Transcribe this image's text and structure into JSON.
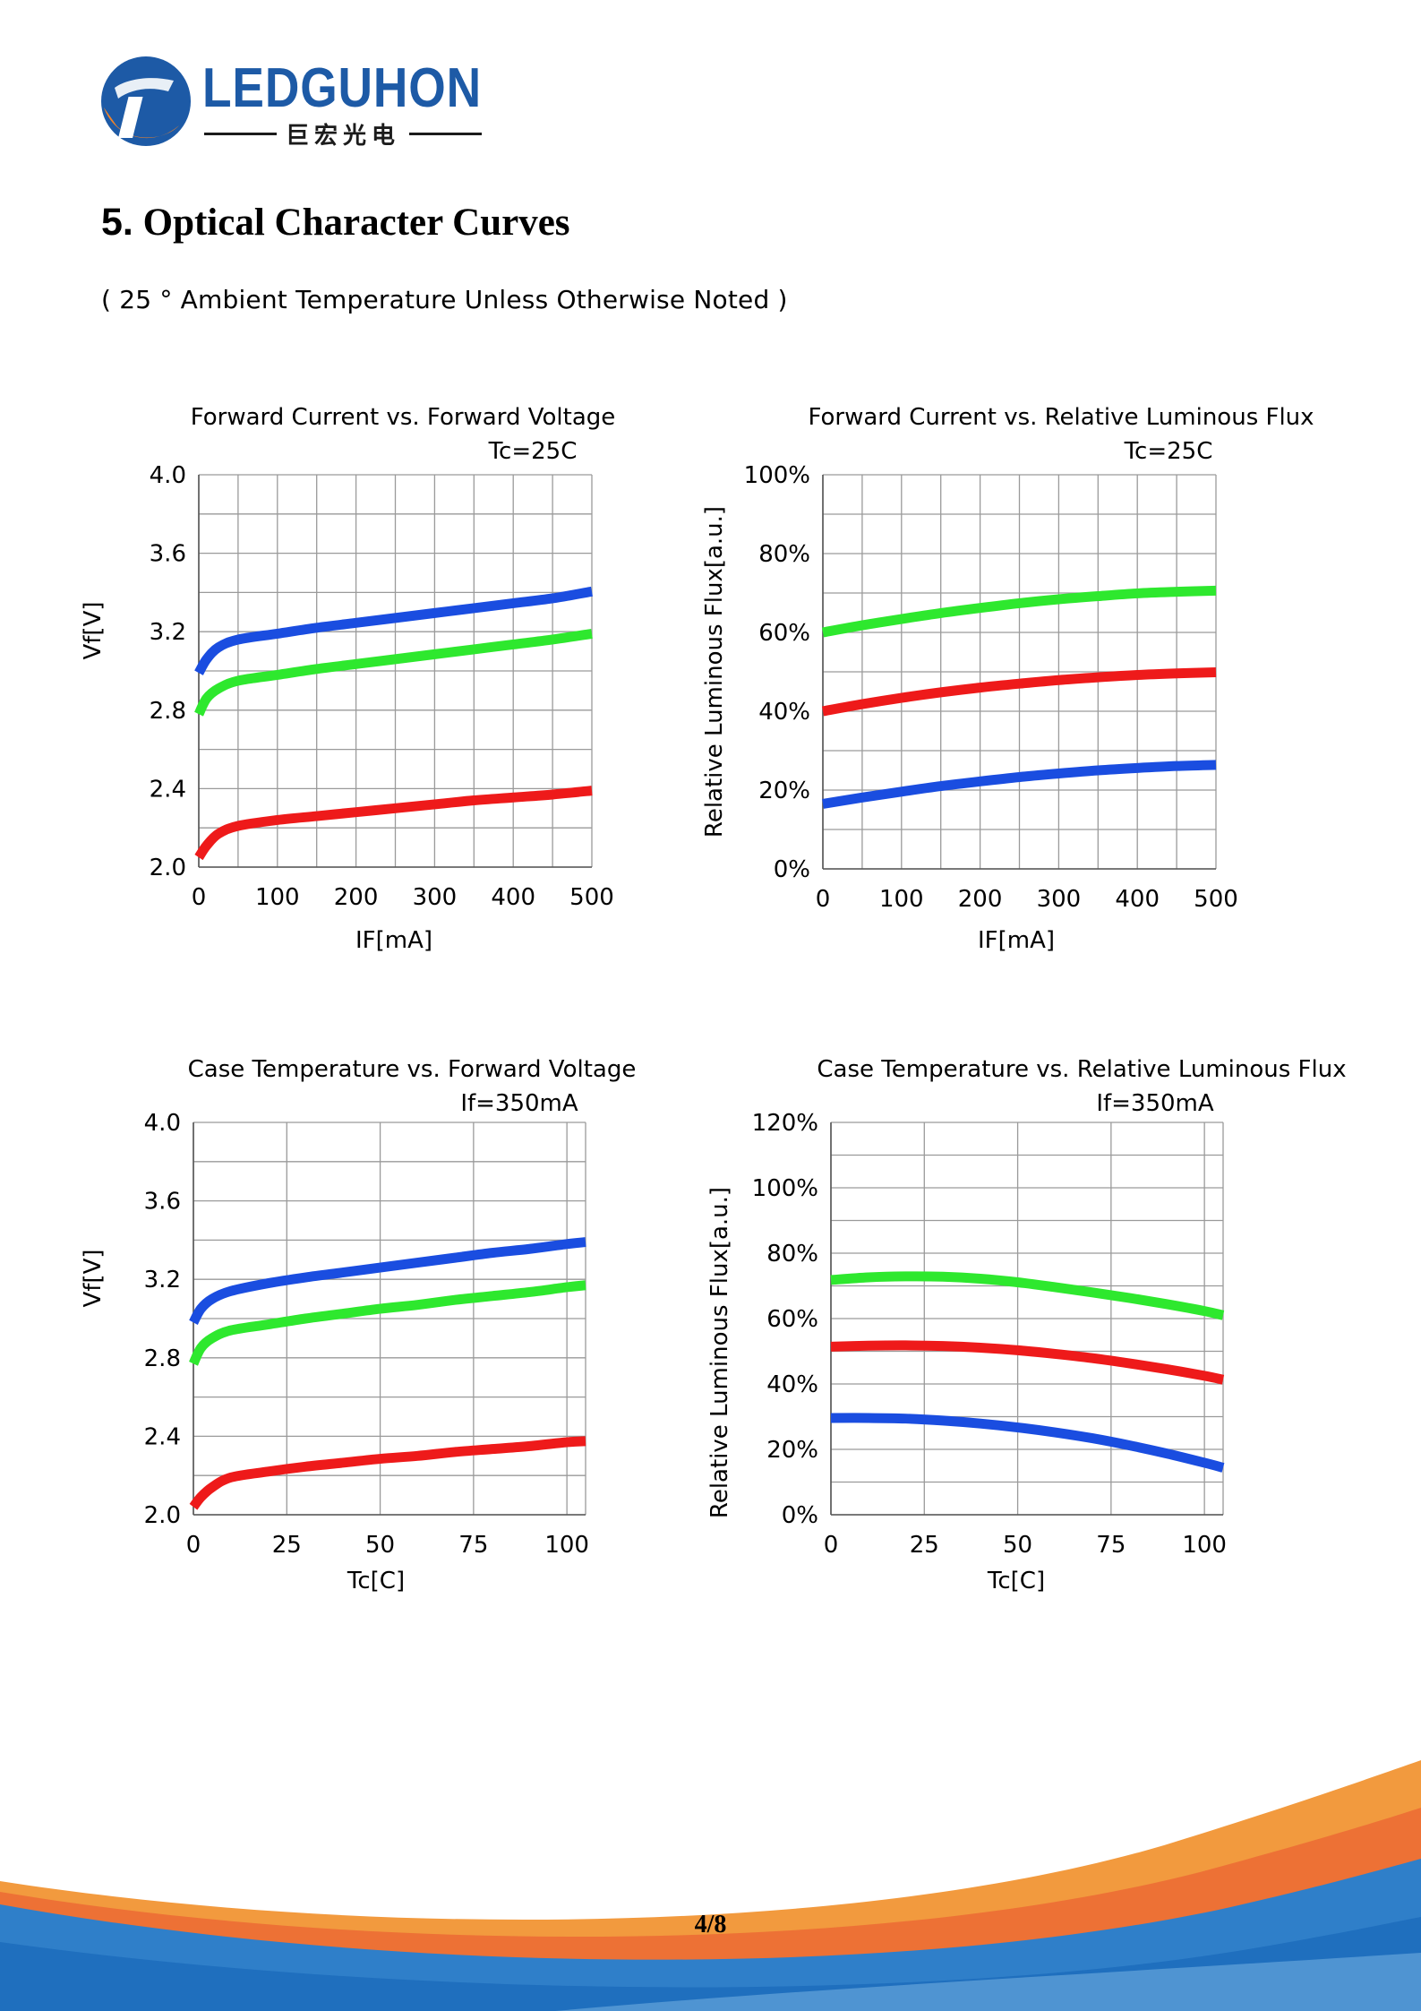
{
  "header": {
    "logo_text": "LEDGUHON",
    "logo_subtext": "巨宏光电"
  },
  "section": {
    "title_number": "5.",
    "title": "Optical Character Curves",
    "note": "( 25 ° Ambient Temperature Unless Otherwise Noted )"
  },
  "footer": {
    "page": "4/8"
  },
  "colors": {
    "blue": "#1a4de0",
    "green": "#2ee82e",
    "red": "#ee1a1a",
    "logo_blue": "#1d5aa6",
    "logo_orange": "#f0832a",
    "footer_orange": "#f29a3e",
    "footer_blue": "#2f7fc9"
  },
  "chart_data": [
    {
      "type": "line",
      "title": "Forward Current vs. Forward Voltage",
      "condition": "Tc=25C",
      "xlabel": "IF[mA]",
      "ylabel": "Vf[V]",
      "xlim": [
        0,
        500
      ],
      "ylim": [
        2.0,
        4.0
      ],
      "x_ticks": [
        0,
        100,
        200,
        300,
        400,
        500
      ],
      "y_ticks": [
        2.0,
        2.4,
        2.8,
        3.2,
        3.6,
        4.0
      ],
      "y_tick_labels": [
        "2.0",
        "2.4",
        "2.8",
        "3.2",
        "3.6",
        "4.0"
      ],
      "x_grid_divisions": 10,
      "y_grid_divisions": 10,
      "grid": true,
      "x": [
        0,
        10,
        25,
        50,
        100,
        150,
        200,
        250,
        300,
        350,
        400,
        450,
        500
      ],
      "series": [
        {
          "color": "blue",
          "values": [
            2.99,
            3.06,
            3.12,
            3.16,
            3.19,
            3.22,
            3.245,
            3.27,
            3.295,
            3.32,
            3.345,
            3.37,
            3.405
          ]
        },
        {
          "color": "green",
          "values": [
            2.78,
            2.86,
            2.91,
            2.95,
            2.98,
            3.01,
            3.035,
            3.06,
            3.085,
            3.11,
            3.135,
            3.16,
            3.19
          ]
        },
        {
          "color": "red",
          "values": [
            2.05,
            2.11,
            2.17,
            2.21,
            2.24,
            2.26,
            2.28,
            2.3,
            2.32,
            2.34,
            2.355,
            2.37,
            2.39
          ]
        }
      ]
    },
    {
      "type": "line",
      "title": "Forward Current vs. Relative Luminous Flux",
      "condition": "Tc=25C",
      "xlabel": "IF[mA]",
      "ylabel": "Relative Luminous Flux[a.u.]",
      "xlim": [
        0,
        500
      ],
      "ylim": [
        0,
        100
      ],
      "x_ticks": [
        0,
        100,
        200,
        300,
        400,
        500
      ],
      "y_ticks": [
        0,
        20,
        40,
        60,
        80,
        100
      ],
      "y_tick_labels": [
        "0%",
        "20%",
        "40%",
        "60%",
        "80%",
        "100%"
      ],
      "x_grid_divisions": 10,
      "y_grid_divisions": 10,
      "grid": true,
      "x": [
        0,
        50,
        100,
        150,
        200,
        250,
        300,
        350,
        400,
        450,
        500
      ],
      "series": [
        {
          "color": "green",
          "values": [
            60,
            61.8,
            63.4,
            64.9,
            66.2,
            67.4,
            68.4,
            69.2,
            69.9,
            70.3,
            70.6
          ]
        },
        {
          "color": "red",
          "values": [
            40,
            41.8,
            43.4,
            44.8,
            46,
            47,
            47.9,
            48.6,
            49.2,
            49.6,
            49.9
          ]
        },
        {
          "color": "blue",
          "values": [
            16.5,
            18.1,
            19.6,
            21,
            22.2,
            23.3,
            24.2,
            25,
            25.6,
            26.1,
            26.4
          ]
        }
      ]
    },
    {
      "type": "line",
      "title": "Case Temperature vs. Forward Voltage",
      "condition": "If=350mA",
      "xlabel": "Tc[C]",
      "ylabel": "Vf[V]",
      "xlim": [
        0,
        105
      ],
      "ylim": [
        2.0,
        4.0
      ],
      "x_ticks": [
        0,
        25,
        50,
        75,
        100
      ],
      "y_ticks": [
        2.0,
        2.4,
        2.8,
        3.2,
        3.6,
        4.0
      ],
      "y_tick_labels": [
        "2.0",
        "2.4",
        "2.8",
        "3.2",
        "3.6",
        "4.0"
      ],
      "x_grid_divisions": [
        0,
        25,
        50,
        75,
        100,
        105
      ],
      "y_grid_divisions": 10,
      "grid": true,
      "x": [
        0,
        2,
        5,
        10,
        20,
        30,
        40,
        50,
        60,
        70,
        80,
        90,
        100,
        105
      ],
      "series": [
        {
          "color": "blue",
          "values": [
            2.98,
            3.05,
            3.1,
            3.14,
            3.18,
            3.21,
            3.235,
            3.26,
            3.285,
            3.31,
            3.335,
            3.355,
            3.38,
            3.39
          ]
        },
        {
          "color": "green",
          "values": [
            2.77,
            2.85,
            2.9,
            2.94,
            2.97,
            3.0,
            3.025,
            3.05,
            3.07,
            3.095,
            3.115,
            3.135,
            3.16,
            3.17
          ]
        },
        {
          "color": "red",
          "values": [
            2.04,
            2.09,
            2.14,
            2.19,
            2.22,
            2.245,
            2.265,
            2.285,
            2.3,
            2.32,
            2.335,
            2.35,
            2.37,
            2.375
          ]
        }
      ]
    },
    {
      "type": "line",
      "title": "Case Temperature vs. Relative Luminous Flux",
      "condition": "If=350mA",
      "xlabel": "Tc[C]",
      "ylabel": "Relative Luminous Flux[a.u.]",
      "xlim": [
        0,
        105
      ],
      "ylim": [
        0,
        120
      ],
      "x_ticks": [
        0,
        25,
        50,
        75,
        100
      ],
      "y_ticks": [
        0,
        20,
        40,
        60,
        80,
        100,
        120
      ],
      "y_tick_labels": [
        "0%",
        "20%",
        "40%",
        "60%",
        "80%",
        "100%",
        "120%"
      ],
      "x_grid_divisions": [
        0,
        25,
        50,
        75,
        100,
        105
      ],
      "y_grid_divisions": 12,
      "grid": true,
      "x": [
        0,
        10,
        20,
        30,
        40,
        50,
        60,
        70,
        80,
        90,
        100,
        105
      ],
      "series": [
        {
          "color": "green",
          "values": [
            71.8,
            72.6,
            72.9,
            72.8,
            72.2,
            71.1,
            69.6,
            68,
            66.3,
            64.4,
            62.3,
            61
          ]
        },
        {
          "color": "red",
          "values": [
            51.4,
            51.7,
            51.8,
            51.6,
            51.1,
            50.3,
            49.2,
            47.9,
            46.3,
            44.5,
            42.5,
            41.3
          ]
        },
        {
          "color": "blue",
          "values": [
            29.6,
            29.6,
            29.4,
            28.8,
            27.9,
            26.7,
            25.2,
            23.4,
            21.2,
            18.7,
            15.9,
            14.4
          ]
        }
      ]
    }
  ]
}
